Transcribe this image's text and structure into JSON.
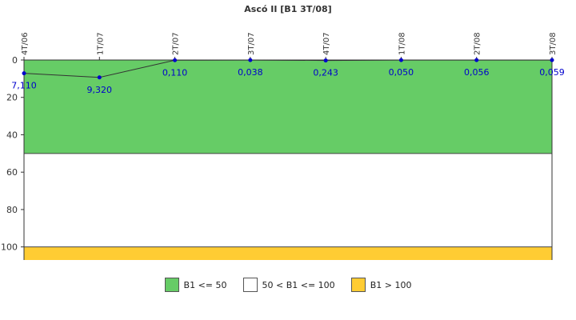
{
  "chart_data": {
    "type": "line",
    "title": "Ascó II [B1 3T/08]",
    "xlabel": "",
    "ylabel": "",
    "categories": [
      "4T/06",
      "1T/07",
      "2T/07",
      "3T/07",
      "4T/07",
      "1T/08",
      "2T/08",
      "3T/08"
    ],
    "series": [
      {
        "values": [
          7.11,
          9.32,
          0.11,
          0.038,
          0.243,
          0.05,
          0.056,
          0.059
        ],
        "labels": [
          "7,110",
          "9,320",
          "0,110",
          "0,038",
          "0,243",
          "0,050",
          "0,056",
          "0,059"
        ],
        "color": "#0000cc"
      }
    ],
    "ylim": [
      0,
      107
    ],
    "y_inverted": true,
    "yticks": [
      0,
      20,
      40,
      60,
      80,
      100
    ],
    "x_axis_position": "top",
    "bands": [
      {
        "from": 0,
        "to": 50,
        "color": "#66cc66",
        "label": "B1 <= 50"
      },
      {
        "from": 50,
        "to": 100,
        "color": "#ffffff",
        "label": "50 < B1 <= 100"
      },
      {
        "from": 100,
        "to": 107,
        "color": "#ffcc33",
        "label": "B1 > 100"
      }
    ],
    "legend_position": "bottom"
  }
}
